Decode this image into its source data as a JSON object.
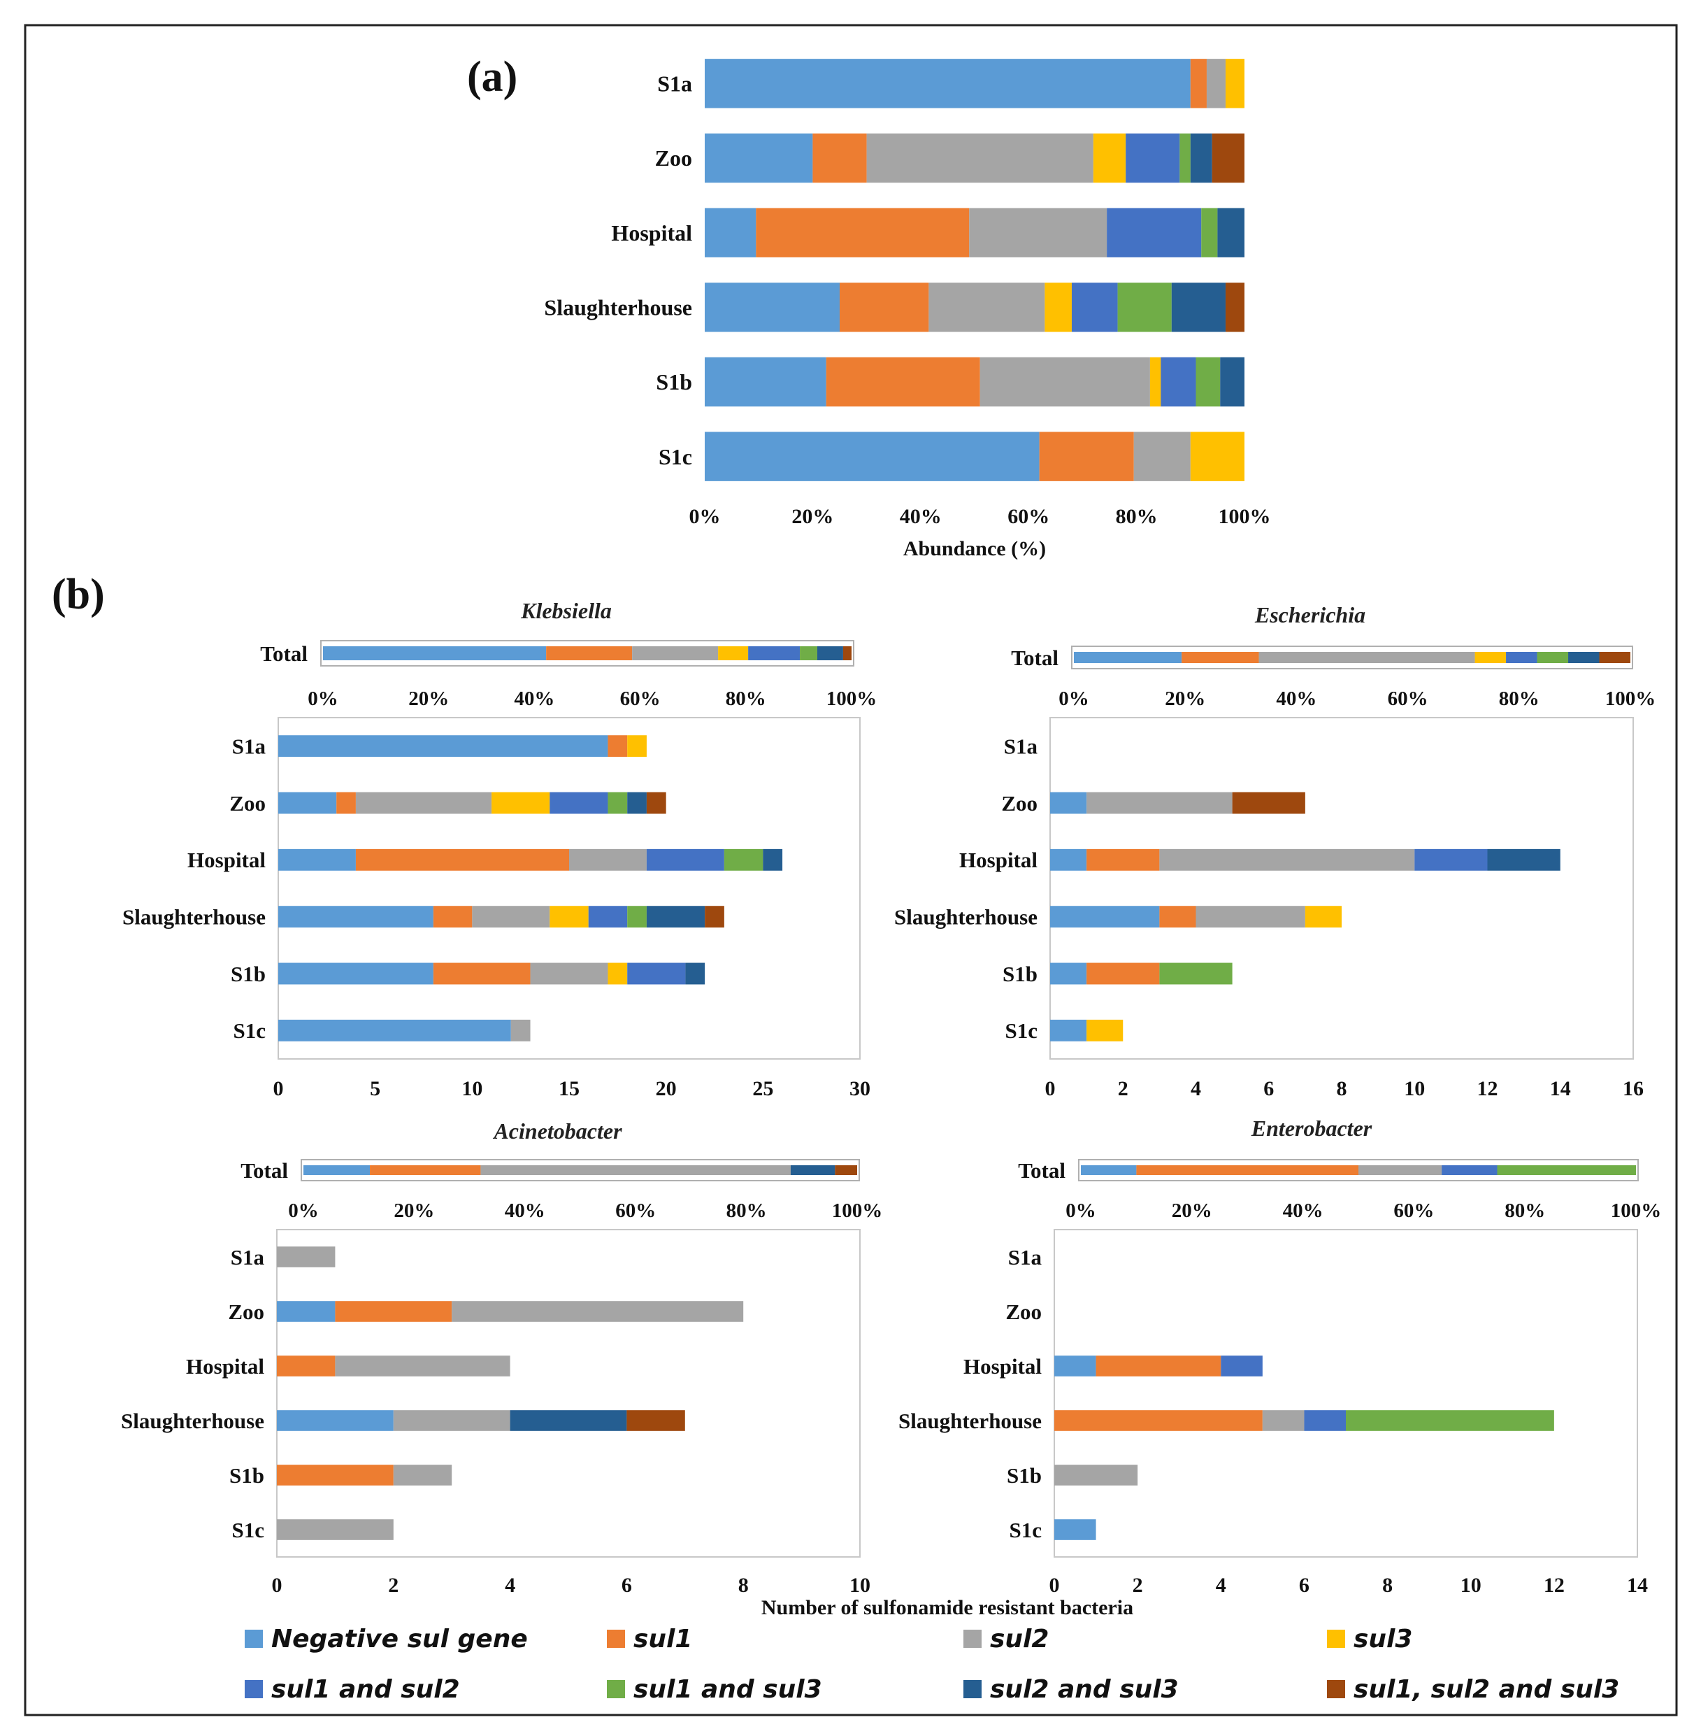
{
  "figure": {
    "label_a": "(a)",
    "label_b": "(b)",
    "shared_xlabel_b": "Number of sulfonamide resistant bacteria"
  },
  "legend": [
    {
      "name": "Negative sul gene",
      "color": "#5B9BD5"
    },
    {
      "name": "sul1",
      "color": "#ED7D31"
    },
    {
      "name": "sul2",
      "color": "#A5A5A5"
    },
    {
      "name": "sul3",
      "color": "#FFC000"
    },
    {
      "name": "sul1 and sul2",
      "color": "#4472C4"
    },
    {
      "name": "sul1 and sul3",
      "color": "#70AD47"
    },
    {
      "name": "sul2 and sul3",
      "color": "#255E91"
    },
    {
      "name": "sul1, sul2 and sul3",
      "color": "#9E480E"
    }
  ],
  "chart_data": [
    {
      "id": "a",
      "type": "bar",
      "orientation": "horizontal",
      "stacked": "percent",
      "categories": [
        "S1a",
        "Zoo",
        "Hospital",
        "Slaughterhouse",
        "S1b",
        "S1c"
      ],
      "xlabel": "Abundance (%)",
      "ticks": [
        "0%",
        "20%",
        "40%",
        "60%",
        "80%",
        "100%"
      ],
      "xlim": [
        0,
        100
      ],
      "series": [
        {
          "name": "Negative sul gene",
          "values": [
            90,
            20,
            9.5,
            25,
            22.5,
            62
          ]
        },
        {
          "name": "sul1",
          "values": [
            3,
            10,
            39.5,
            16.5,
            28.5,
            17.5
          ]
        },
        {
          "name": "sul2",
          "values": [
            3.5,
            42,
            25.5,
            21.5,
            31.5,
            10.5
          ]
        },
        {
          "name": "sul3",
          "values": [
            3.5,
            6,
            0,
            5,
            2,
            10
          ]
        },
        {
          "name": "sul1 and sul2",
          "values": [
            0,
            10,
            17.5,
            8.5,
            6.5,
            0
          ]
        },
        {
          "name": "sul1 and sul3",
          "values": [
            0,
            2,
            3,
            10,
            4.5,
            0
          ]
        },
        {
          "name": "sul2 and sul3",
          "values": [
            0,
            4,
            5,
            10,
            4.5,
            0
          ]
        },
        {
          "name": "sul1, sul2 and sul3",
          "values": [
            0,
            6,
            0,
            3.5,
            0,
            0
          ]
        }
      ]
    },
    {
      "id": "klebsiella",
      "type": "bar",
      "orientation": "horizontal",
      "stacked": true,
      "title": "Klebsiella",
      "categories": [
        "S1a",
        "Zoo",
        "Hospital",
        "Slaughterhouse",
        "S1b",
        "S1c"
      ],
      "xlim": [
        0,
        30
      ],
      "ticks": [
        "0",
        "5",
        "10",
        "15",
        "20",
        "25",
        "30"
      ],
      "series": [
        {
          "name": "Negative sul gene",
          "values": [
            17,
            3,
            4,
            8,
            8,
            12
          ]
        },
        {
          "name": "sul1",
          "values": [
            1,
            1,
            11,
            2,
            5,
            0
          ]
        },
        {
          "name": "sul2",
          "values": [
            0,
            7,
            4,
            4,
            4,
            1
          ]
        },
        {
          "name": "sul3",
          "values": [
            1,
            3,
            0,
            2,
            1,
            0
          ]
        },
        {
          "name": "sul1 and sul2",
          "values": [
            0,
            3,
            4,
            2,
            3,
            0
          ]
        },
        {
          "name": "sul1 and sul3",
          "values": [
            0,
            1,
            2,
            1,
            0,
            0
          ]
        },
        {
          "name": "sul2 and sul3",
          "values": [
            0,
            1,
            1,
            3,
            1,
            0
          ]
        },
        {
          "name": "sul1, sul2 and sul3",
          "values": [
            0,
            1,
            0,
            1,
            0,
            0
          ]
        }
      ],
      "total": {
        "label": "Total",
        "ticks": [
          "0%",
          "20%",
          "40%",
          "60%",
          "80%",
          "100%"
        ],
        "values": [
          42.3,
          16.3,
          16.3,
          5.7,
          9.8,
          3.3,
          4.9,
          1.6
        ]
      }
    },
    {
      "id": "escherichia",
      "type": "bar",
      "orientation": "horizontal",
      "stacked": true,
      "title": "Escherichia",
      "categories": [
        "S1a",
        "Zoo",
        "Hospital",
        "Slaughterhouse",
        "S1b",
        "S1c"
      ],
      "xlim": [
        0,
        16
      ],
      "ticks": [
        "0",
        "2",
        "4",
        "6",
        "8",
        "10",
        "12",
        "14",
        "16"
      ],
      "series": [
        {
          "name": "Negative sul gene",
          "values": [
            0,
            1,
            1,
            3,
            1,
            1
          ]
        },
        {
          "name": "sul1",
          "values": [
            0,
            0,
            2,
            1,
            2,
            0
          ]
        },
        {
          "name": "sul2",
          "values": [
            0,
            4,
            7,
            3,
            0,
            0
          ]
        },
        {
          "name": "sul3",
          "values": [
            0,
            0,
            0,
            1,
            0,
            1
          ]
        },
        {
          "name": "sul1 and sul2",
          "values": [
            0,
            0,
            2,
            0,
            0,
            0
          ]
        },
        {
          "name": "sul1 and sul3",
          "values": [
            0,
            0,
            0,
            0,
            2,
            0
          ]
        },
        {
          "name": "sul2 and sul3",
          "values": [
            0,
            0,
            2,
            0,
            0,
            0
          ]
        },
        {
          "name": "sul1, sul2 and sul3",
          "values": [
            0,
            2,
            0,
            0,
            0,
            0
          ]
        }
      ],
      "total": {
        "label": "Total",
        "ticks": [
          "0%",
          "20%",
          "40%",
          "60%",
          "80%",
          "100%"
        ],
        "values": [
          19.4,
          13.9,
          38.9,
          5.6,
          5.6,
          5.6,
          5.6,
          5.6
        ]
      }
    },
    {
      "id": "acinetobacter",
      "type": "bar",
      "orientation": "horizontal",
      "stacked": true,
      "title": "Acinetobacter",
      "categories": [
        "S1a",
        "Zoo",
        "Hospital",
        "Slaughterhouse",
        "S1b",
        "S1c"
      ],
      "xlim": [
        0,
        10
      ],
      "ticks": [
        "0",
        "2",
        "4",
        "6",
        "8",
        "10"
      ],
      "series": [
        {
          "name": "Negative sul gene",
          "values": [
            0,
            1,
            0,
            2,
            0,
            0
          ]
        },
        {
          "name": "sul1",
          "values": [
            0,
            2,
            1,
            0,
            2,
            0
          ]
        },
        {
          "name": "sul2",
          "values": [
            1,
            5,
            3,
            2,
            1,
            2
          ]
        },
        {
          "name": "sul3",
          "values": [
            0,
            0,
            0,
            0,
            0,
            0
          ]
        },
        {
          "name": "sul1 and sul2",
          "values": [
            0,
            0,
            0,
            0,
            0,
            0
          ]
        },
        {
          "name": "sul1 and sul3",
          "values": [
            0,
            0,
            0,
            0,
            0,
            0
          ]
        },
        {
          "name": "sul2 and sul3",
          "values": [
            0,
            0,
            0,
            2,
            0,
            0
          ]
        },
        {
          "name": "sul1, sul2 and sul3",
          "values": [
            0,
            0,
            0,
            1,
            0,
            0
          ]
        }
      ],
      "total": {
        "label": "Total",
        "ticks": [
          "0%",
          "20%",
          "40%",
          "60%",
          "80%",
          "100%"
        ],
        "values": [
          12,
          20,
          56,
          0,
          0,
          0,
          8,
          4
        ]
      }
    },
    {
      "id": "enterobacter",
      "type": "bar",
      "orientation": "horizontal",
      "stacked": true,
      "title": "Enterobacter",
      "categories": [
        "S1a",
        "Zoo",
        "Hospital",
        "Slaughterhouse",
        "S1b",
        "S1c"
      ],
      "xlim": [
        0,
        14
      ],
      "ticks": [
        "0",
        "2",
        "4",
        "6",
        "8",
        "10",
        "12",
        "14"
      ],
      "series": [
        {
          "name": "Negative sul gene",
          "values": [
            0,
            0,
            1,
            0,
            0,
            1
          ]
        },
        {
          "name": "sul1",
          "values": [
            0,
            0,
            3,
            5,
            0,
            0
          ]
        },
        {
          "name": "sul2",
          "values": [
            0,
            0,
            0,
            1,
            2,
            0
          ]
        },
        {
          "name": "sul3",
          "values": [
            0,
            0,
            0,
            0,
            0,
            0
          ]
        },
        {
          "name": "sul1 and sul2",
          "values": [
            0,
            0,
            1,
            1,
            0,
            0
          ]
        },
        {
          "name": "sul1 and sul3",
          "values": [
            0,
            0,
            0,
            5,
            0,
            0
          ]
        },
        {
          "name": "sul2 and sul3",
          "values": [
            0,
            0,
            0,
            0,
            0,
            0
          ]
        },
        {
          "name": "sul1, sul2 and sul3",
          "values": [
            0,
            0,
            0,
            0,
            0,
            0
          ]
        }
      ],
      "total": {
        "label": "Total",
        "ticks": [
          "0%",
          "20%",
          "40%",
          "60%",
          "80%",
          "100%"
        ],
        "values": [
          10,
          40,
          15,
          0,
          10,
          25,
          0,
          0
        ]
      }
    }
  ]
}
